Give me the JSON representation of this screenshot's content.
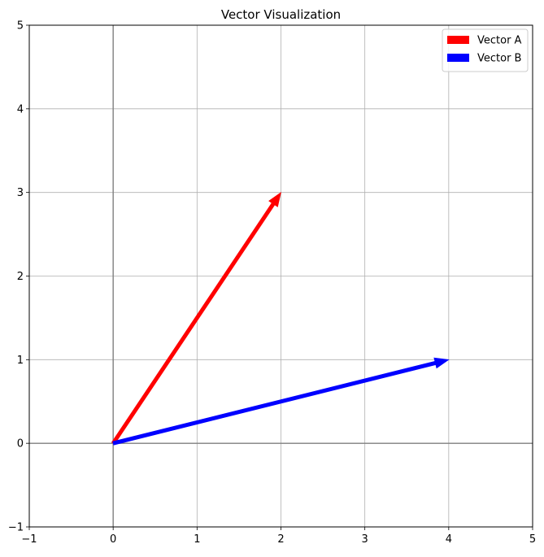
{
  "chart_data": {
    "type": "quiver",
    "title": "Vector Visualization",
    "xlabel": "",
    "ylabel": "",
    "xlim": [
      -1,
      5
    ],
    "ylim": [
      -1,
      5
    ],
    "xticks": [
      "−1",
      "0",
      "1",
      "2",
      "3",
      "4",
      "5"
    ],
    "yticks": [
      "−1",
      "0",
      "1",
      "2",
      "3",
      "4",
      "5"
    ],
    "grid": true,
    "axis_lines_at_origin": true,
    "legend_position": "top-right",
    "series": [
      {
        "name": "Vector A",
        "origin": [
          0,
          0
        ],
        "components": [
          2,
          3
        ],
        "color": "#ff0000"
      },
      {
        "name": "Vector B",
        "origin": [
          0,
          0
        ],
        "components": [
          4,
          1
        ],
        "color": "#0000ff"
      }
    ]
  }
}
